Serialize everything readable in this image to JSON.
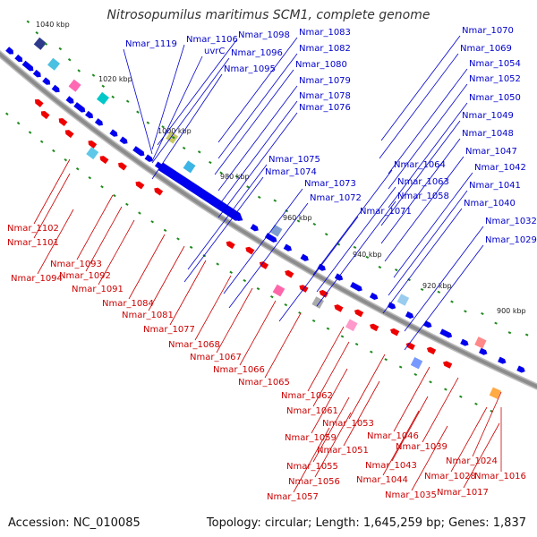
{
  "title": "Nitrosopumilus maritimus SCM1, complete genome",
  "accession": "Accession: NC_010085",
  "summary": "Topology: circular; Length: 1,645,259 bp; Genes: 1,837",
  "colors": {
    "forward_gene": "#0000ee",
    "reverse_gene": "#ee0000",
    "backbone": "#8c8c8c",
    "forward_label": "#0000cc",
    "reverse_label": "#cc0000",
    "tick_mark": "#1f8a1f"
  },
  "scale_ticks": [
    "1040 kbp",
    "1020 kbp",
    "1000 kbp",
    "980 kbp",
    "960 kbp",
    "940 kbp",
    "920 kbp",
    "900 kbp"
  ],
  "forward_labels": [
    "Nmar_1119",
    "Nmar_1106",
    "Nmar_1098",
    "uvrC",
    "Nmar_1096",
    "Nmar_1095",
    "Nmar_1083",
    "Nmar_1082",
    "Nmar_1080",
    "Nmar_1079",
    "Nmar_1078",
    "Nmar_1076",
    "Nmar_1075",
    "Nmar_1074",
    "Nmar_1073",
    "Nmar_1072",
    "Nmar_1071",
    "Nmar_1064",
    "Nmar_1063",
    "Nmar_1058",
    "Nmar_1070",
    "Nmar_1069",
    "Nmar_1054",
    "Nmar_1052",
    "Nmar_1050",
    "Nmar_1049",
    "Nmar_1048",
    "Nmar_1047",
    "Nmar_1042",
    "Nmar_1041",
    "Nmar_1040",
    "Nmar_1032",
    "Nmar_1029"
  ],
  "reverse_labels": [
    "Nmar_1102",
    "Nmar_1101",
    "Nmar_1093",
    "Nmar_1094",
    "Nmar_1092",
    "Nmar_1091",
    "Nmar_1084",
    "Nmar_1081",
    "Nmar_1077",
    "Nmar_1068",
    "Nmar_1067",
    "Nmar_1066",
    "Nmar_1065",
    "Nmar_1062",
    "Nmar_1061",
    "Nmar_1053",
    "Nmar_1059",
    "Nmar_1051",
    "Nmar_1055",
    "Nmar_1056",
    "Nmar_1057",
    "Nmar_1046",
    "Nmar_1043",
    "Nmar_1044",
    "Nmar_1039",
    "Nmar_1035",
    "Nmar_1024",
    "Nmar_1028",
    "Nmar_1017",
    "Nmar_1016"
  ]
}
